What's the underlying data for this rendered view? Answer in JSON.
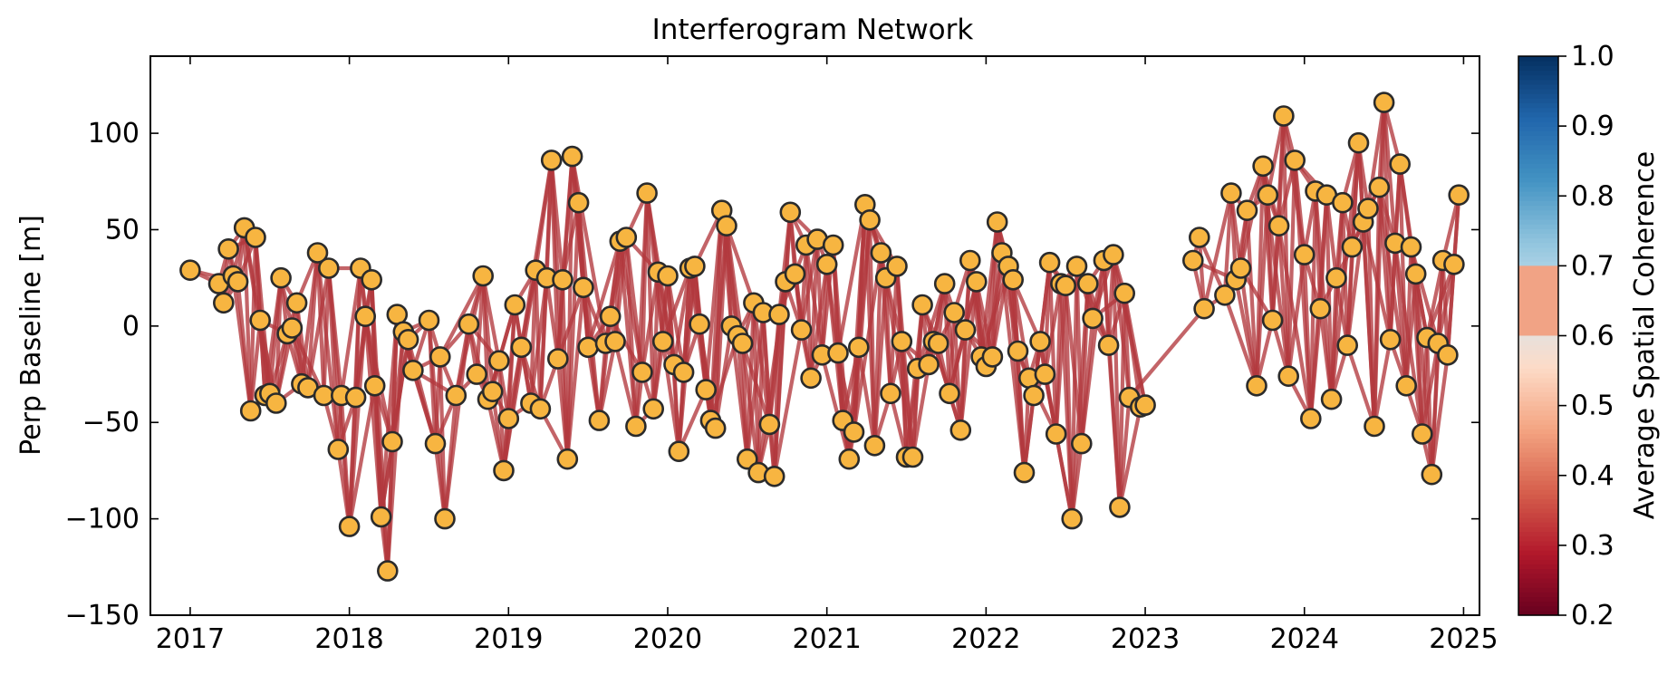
{
  "chart_data": {
    "type": "network",
    "title": "Interferogram Network",
    "ylabel": "Perp Baseline [m]",
    "xlabel": "",
    "xlim": [
      2016.75,
      2025.1
    ],
    "ylim": [
      -150,
      140
    ],
    "xticks": [
      "2017",
      "2018",
      "2019",
      "2020",
      "2021",
      "2022",
      "2023",
      "2024",
      "2025"
    ],
    "xtick_values": [
      2017,
      2018,
      2019,
      2020,
      2021,
      2022,
      2023,
      2024,
      2025
    ],
    "yticks": [
      "100",
      "50",
      "0",
      "−50",
      "−100",
      "−150"
    ],
    "ytick_values": [
      100,
      50,
      0,
      -50,
      -100,
      -150
    ],
    "colorbar": {
      "label": "Average Spatial Coherence",
      "range": [
        0.2,
        1.0
      ],
      "ticks": [
        "0.2",
        "0.3",
        "0.4",
        "0.5",
        "0.6",
        "0.7",
        "0.8",
        "0.9",
        "1.0"
      ],
      "tick_values": [
        0.2,
        0.3,
        0.4,
        0.5,
        0.6,
        0.7,
        0.8,
        0.9,
        1.0
      ],
      "colormap": "RdBu",
      "colors": [
        "#67001f",
        "#b2182b",
        "#d6604d",
        "#f4a582",
        "#fddbc7",
        "#d1e5f0",
        "#92c5de",
        "#4393c3",
        "#2166ac",
        "#053061"
      ],
      "masked_above": 0.7
    },
    "grid": false,
    "node_fill": "#f7b541",
    "node_edge": "#2b2b2b",
    "edge_color": "#b2383e",
    "edge_coherence": 0.38,
    "nodes": [
      [
        2017.0,
        29
      ],
      [
        2017.18,
        22
      ],
      [
        2017.21,
        12
      ],
      [
        2017.24,
        40
      ],
      [
        2017.27,
        26
      ],
      [
        2017.3,
        23
      ],
      [
        2017.34,
        51
      ],
      [
        2017.38,
        -44
      ],
      [
        2017.41,
        46
      ],
      [
        2017.44,
        3
      ],
      [
        2017.47,
        -36
      ],
      [
        2017.5,
        -35
      ],
      [
        2017.54,
        -40
      ],
      [
        2017.57,
        25
      ],
      [
        2017.61,
        -4
      ],
      [
        2017.64,
        -1
      ],
      [
        2017.67,
        12
      ],
      [
        2017.7,
        -30
      ],
      [
        2017.74,
        -32
      ],
      [
        2017.8,
        38
      ],
      [
        2017.84,
        -36
      ],
      [
        2017.87,
        30
      ],
      [
        2017.93,
        -64
      ],
      [
        2017.95,
        -36
      ],
      [
        2018.0,
        -104
      ],
      [
        2018.04,
        -37
      ],
      [
        2018.07,
        30
      ],
      [
        2018.1,
        5
      ],
      [
        2018.14,
        24
      ],
      [
        2018.16,
        -31
      ],
      [
        2018.2,
        -99
      ],
      [
        2018.24,
        -127
      ],
      [
        2018.27,
        -60
      ],
      [
        2018.3,
        6
      ],
      [
        2018.34,
        -3
      ],
      [
        2018.37,
        -7
      ],
      [
        2018.4,
        -23
      ],
      [
        2018.5,
        3
      ],
      [
        2018.54,
        -61
      ],
      [
        2018.57,
        -16
      ],
      [
        2018.6,
        -100
      ],
      [
        2018.67,
        -36
      ],
      [
        2018.75,
        1
      ],
      [
        2018.8,
        -25
      ],
      [
        2018.84,
        26
      ],
      [
        2018.87,
        -38
      ],
      [
        2018.9,
        -34
      ],
      [
        2018.94,
        -18
      ],
      [
        2018.97,
        -75
      ],
      [
        2019.0,
        -48
      ],
      [
        2019.04,
        11
      ],
      [
        2019.08,
        -11
      ],
      [
        2019.14,
        -40
      ],
      [
        2019.17,
        29
      ],
      [
        2019.2,
        -43
      ],
      [
        2019.24,
        25
      ],
      [
        2019.27,
        86
      ],
      [
        2019.31,
        -17
      ],
      [
        2019.34,
        24
      ],
      [
        2019.37,
        -69
      ],
      [
        2019.4,
        88
      ],
      [
        2019.44,
        64
      ],
      [
        2019.47,
        20
      ],
      [
        2019.5,
        -11
      ],
      [
        2019.57,
        -49
      ],
      [
        2019.61,
        -9
      ],
      [
        2019.64,
        5
      ],
      [
        2019.67,
        -8
      ],
      [
        2019.7,
        44
      ],
      [
        2019.74,
        46
      ],
      [
        2019.8,
        -52
      ],
      [
        2019.84,
        -24
      ],
      [
        2019.87,
        69
      ],
      [
        2019.91,
        -43
      ],
      [
        2019.94,
        28
      ],
      [
        2019.97,
        -8
      ],
      [
        2020.0,
        26
      ],
      [
        2020.04,
        -20
      ],
      [
        2020.07,
        -65
      ],
      [
        2020.1,
        -24
      ],
      [
        2020.14,
        30
      ],
      [
        2020.17,
        31
      ],
      [
        2020.2,
        1
      ],
      [
        2020.24,
        -33
      ],
      [
        2020.27,
        -49
      ],
      [
        2020.3,
        -53
      ],
      [
        2020.34,
        60
      ],
      [
        2020.37,
        52
      ],
      [
        2020.4,
        0
      ],
      [
        2020.44,
        -5
      ],
      [
        2020.47,
        -9
      ],
      [
        2020.5,
        -69
      ],
      [
        2020.54,
        12
      ],
      [
        2020.57,
        -76
      ],
      [
        2020.6,
        7
      ],
      [
        2020.64,
        -51
      ],
      [
        2020.67,
        -78
      ],
      [
        2020.7,
        6
      ],
      [
        2020.74,
        23
      ],
      [
        2020.77,
        59
      ],
      [
        2020.8,
        27
      ],
      [
        2020.84,
        -2
      ],
      [
        2020.87,
        42
      ],
      [
        2020.9,
        -27
      ],
      [
        2020.94,
        45
      ],
      [
        2020.97,
        -15
      ],
      [
        2021.0,
        32
      ],
      [
        2021.04,
        42
      ],
      [
        2021.07,
        -14
      ],
      [
        2021.1,
        -49
      ],
      [
        2021.14,
        -69
      ],
      [
        2021.17,
        -55
      ],
      [
        2021.2,
        -11
      ],
      [
        2021.24,
        63
      ],
      [
        2021.27,
        55
      ],
      [
        2021.3,
        -62
      ],
      [
        2021.34,
        38
      ],
      [
        2021.37,
        25
      ],
      [
        2021.4,
        -35
      ],
      [
        2021.44,
        31
      ],
      [
        2021.47,
        -8
      ],
      [
        2021.5,
        -68
      ],
      [
        2021.54,
        -68
      ],
      [
        2021.57,
        -22
      ],
      [
        2021.6,
        11
      ],
      [
        2021.64,
        -20
      ],
      [
        2021.67,
        -8
      ],
      [
        2021.7,
        -9
      ],
      [
        2021.74,
        22
      ],
      [
        2021.77,
        -35
      ],
      [
        2021.8,
        7
      ],
      [
        2021.84,
        -54
      ],
      [
        2021.87,
        -2
      ],
      [
        2021.9,
        34
      ],
      [
        2021.94,
        23
      ],
      [
        2021.97,
        -16
      ],
      [
        2022.0,
        -21
      ],
      [
        2022.04,
        -16
      ],
      [
        2022.07,
        54
      ],
      [
        2022.1,
        38
      ],
      [
        2022.14,
        31
      ],
      [
        2022.17,
        24
      ],
      [
        2022.2,
        -13
      ],
      [
        2022.24,
        -76
      ],
      [
        2022.27,
        -27
      ],
      [
        2022.3,
        -36
      ],
      [
        2022.34,
        -8
      ],
      [
        2022.37,
        -25
      ],
      [
        2022.4,
        33
      ],
      [
        2022.44,
        -56
      ],
      [
        2022.47,
        22
      ],
      [
        2022.5,
        21
      ],
      [
        2022.54,
        -100
      ],
      [
        2022.57,
        31
      ],
      [
        2022.6,
        -61
      ],
      [
        2022.64,
        22
      ],
      [
        2022.67,
        4
      ],
      [
        2022.74,
        34
      ],
      [
        2022.77,
        -10
      ],
      [
        2022.8,
        37
      ],
      [
        2022.84,
        -94
      ],
      [
        2022.87,
        17
      ],
      [
        2022.9,
        -37
      ],
      [
        2022.97,
        -42
      ],
      [
        2023.0,
        -41
      ],
      [
        2023.3,
        34
      ],
      [
        2023.34,
        46
      ],
      [
        2023.37,
        9
      ],
      [
        2023.5,
        16
      ],
      [
        2023.54,
        69
      ],
      [
        2023.57,
        24
      ],
      [
        2023.6,
        30
      ],
      [
        2023.64,
        60
      ],
      [
        2023.7,
        -31
      ],
      [
        2023.74,
        83
      ],
      [
        2023.77,
        68
      ],
      [
        2023.8,
        3
      ],
      [
        2023.84,
        52
      ],
      [
        2023.87,
        109
      ],
      [
        2023.9,
        -26
      ],
      [
        2023.94,
        86
      ],
      [
        2024.0,
        37
      ],
      [
        2024.04,
        -48
      ],
      [
        2024.07,
        70
      ],
      [
        2024.1,
        9
      ],
      [
        2024.14,
        68
      ],
      [
        2024.17,
        -38
      ],
      [
        2024.2,
        25
      ],
      [
        2024.24,
        64
      ],
      [
        2024.27,
        -10
      ],
      [
        2024.3,
        41
      ],
      [
        2024.34,
        95
      ],
      [
        2024.37,
        54
      ],
      [
        2024.4,
        61
      ],
      [
        2024.44,
        -52
      ],
      [
        2024.47,
        72
      ],
      [
        2024.5,
        116
      ],
      [
        2024.54,
        -7
      ],
      [
        2024.57,
        43
      ],
      [
        2024.6,
        84
      ],
      [
        2024.64,
        -31
      ],
      [
        2024.67,
        41
      ],
      [
        2024.7,
        27
      ],
      [
        2024.74,
        -56
      ],
      [
        2024.77,
        -6
      ],
      [
        2024.8,
        -77
      ],
      [
        2024.84,
        -9
      ],
      [
        2024.87,
        34
      ],
      [
        2024.9,
        -15
      ],
      [
        2024.94,
        32
      ],
      [
        2024.97,
        68
      ]
    ]
  }
}
